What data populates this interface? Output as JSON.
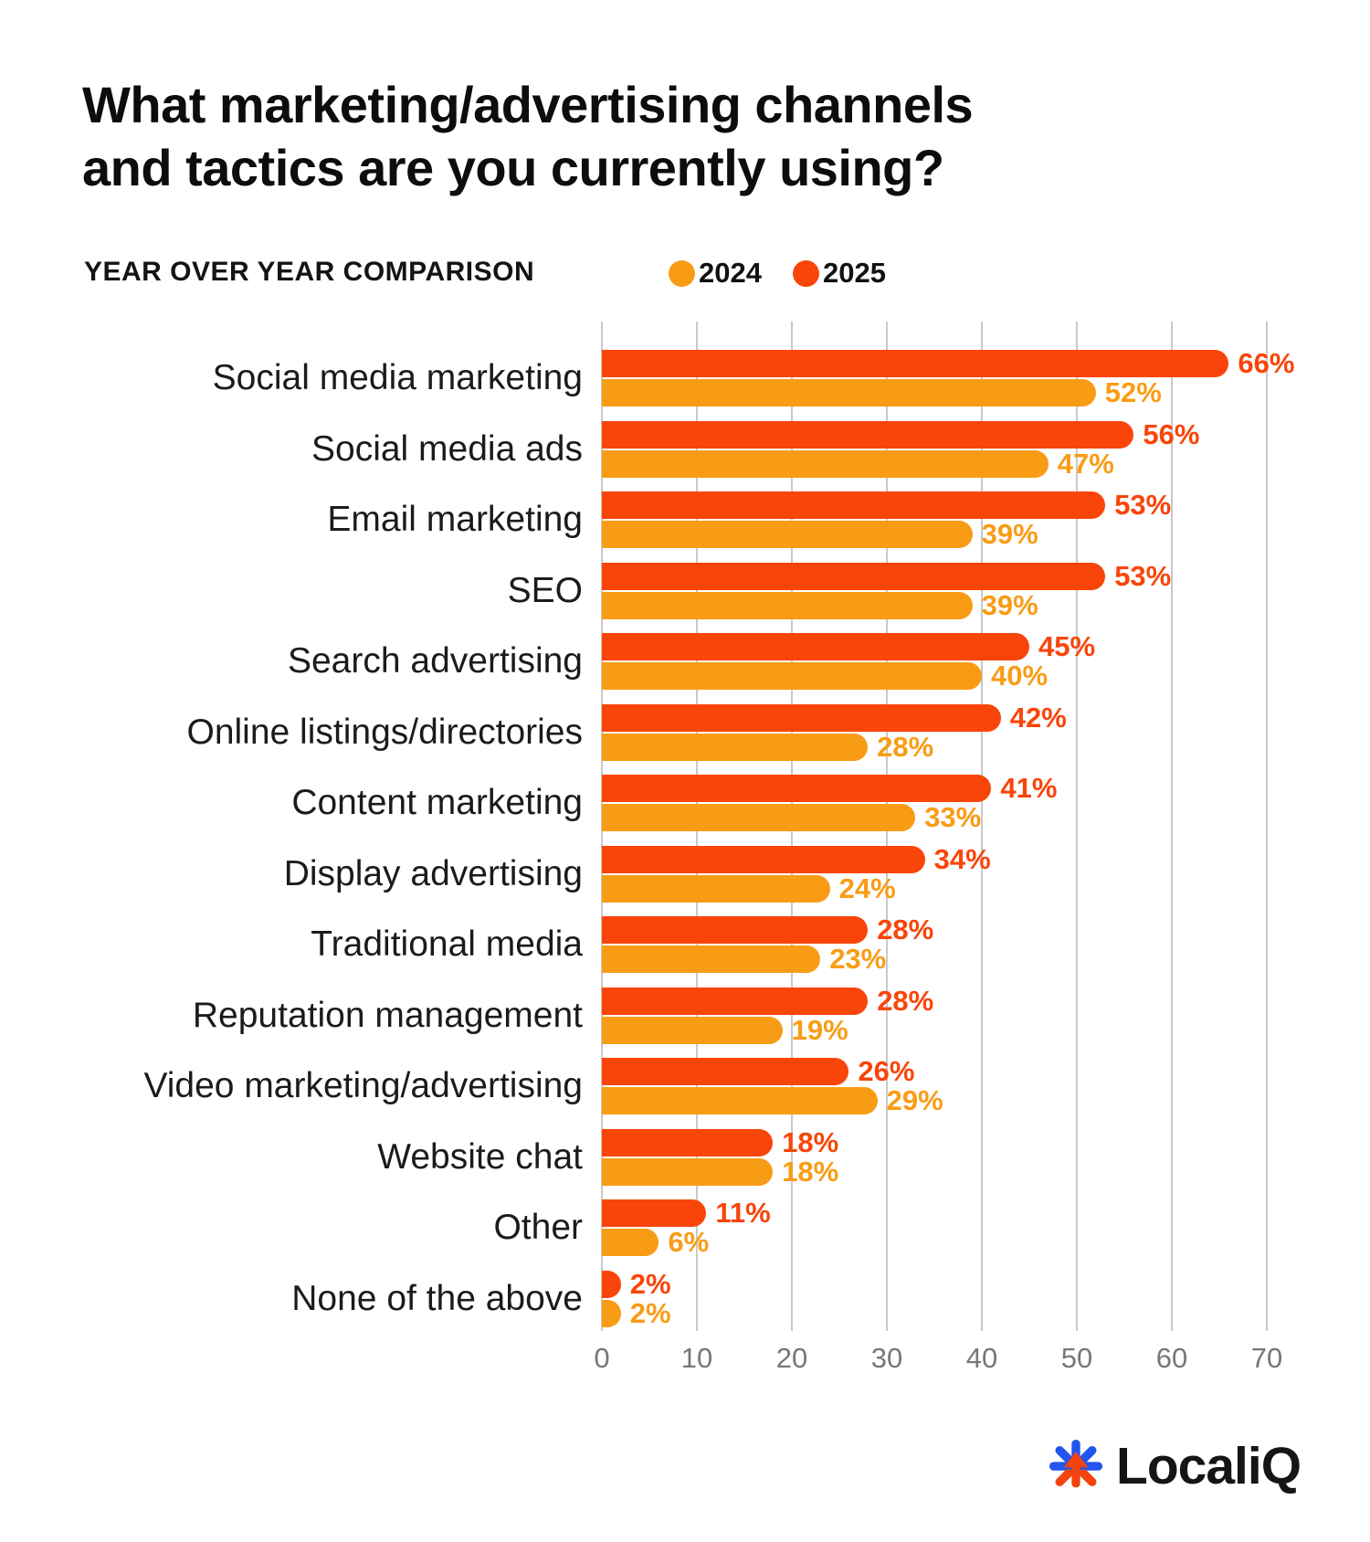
{
  "title": {
    "line1": "What marketing/advertising channels",
    "line2": "and tactics are you currently using?"
  },
  "subtitle": "YEAR OVER YEAR COMPARISON",
  "legend": [
    {
      "label": "2024",
      "color": "#F99C15"
    },
    {
      "label": "2025",
      "color": "#F9450A"
    }
  ],
  "colors": {
    "bar_2025": "#F9450A",
    "bar_2024": "#F99C15",
    "gridline": "#C9C9C9",
    "axis_text": "#777777",
    "title_text": "#0D0D0D",
    "logo_blue": "#2155EE",
    "logo_orange": "#F4430E"
  },
  "chart_data": {
    "type": "bar",
    "orientation": "horizontal",
    "title": "What marketing/advertising channels and tactics are you currently using?",
    "subtitle": "YEAR OVER YEAR COMPARISON",
    "categories": [
      "Social media marketing",
      "Social media ads",
      "Email marketing",
      "SEO",
      "Search advertising",
      "Online listings/directories",
      "Content marketing",
      "Display advertising",
      "Traditional media",
      "Reputation management",
      "Video marketing/advertising",
      "Website chat",
      "Other",
      "None of the above"
    ],
    "series": [
      {
        "name": "2025",
        "color": "#F9450A",
        "values": [
          66,
          56,
          53,
          53,
          45,
          42,
          41,
          34,
          28,
          28,
          26,
          18,
          11,
          2
        ]
      },
      {
        "name": "2024",
        "color": "#F99C15",
        "values": [
          52,
          47,
          39,
          39,
          40,
          28,
          33,
          24,
          23,
          19,
          29,
          18,
          6,
          2
        ]
      }
    ],
    "value_suffix": "%",
    "xlabel": "",
    "ylabel": "",
    "xlim": [
      0,
      70
    ],
    "x_ticks": [
      0,
      10,
      20,
      30,
      40,
      50,
      60,
      70
    ],
    "grid": true,
    "legend_position": "top"
  },
  "logo": {
    "text": "LocaliQ",
    "icon": "localiq-asterisk-arrow-icon"
  }
}
